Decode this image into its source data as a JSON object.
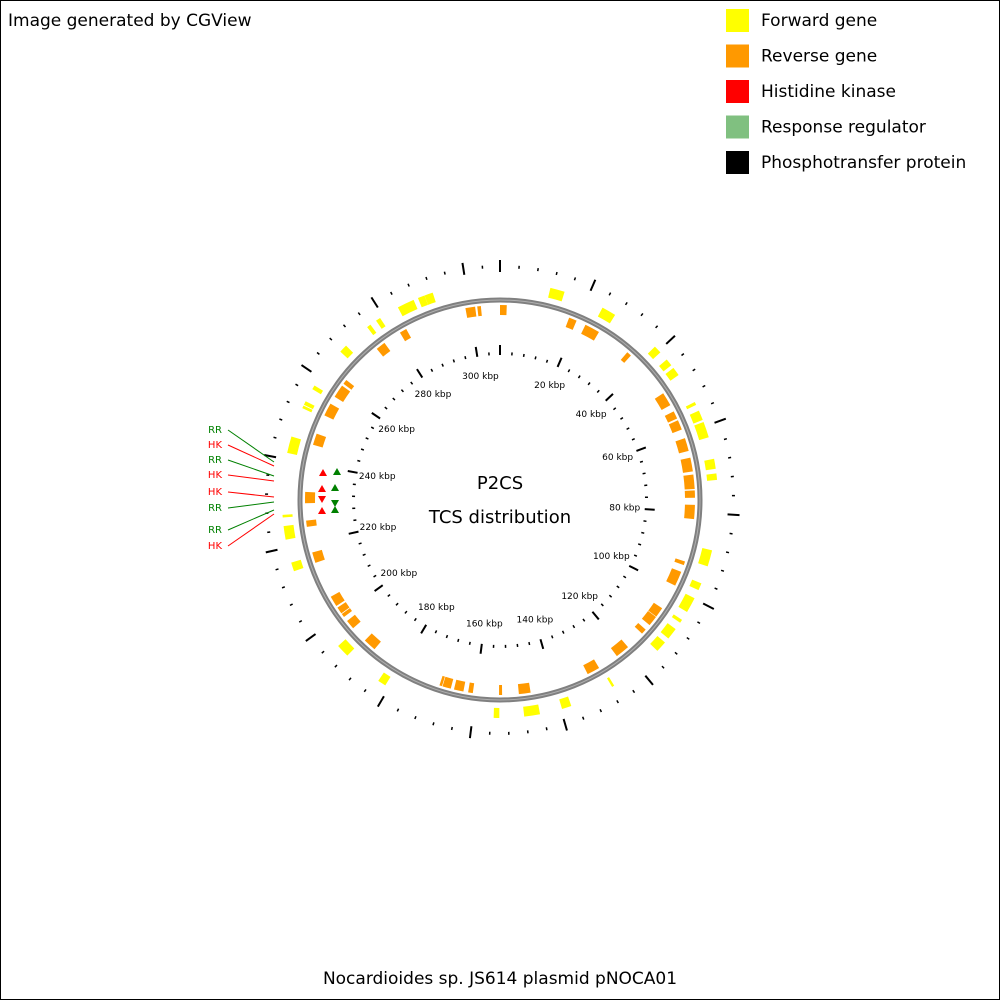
{
  "header": {
    "title": "Image generated by CGView"
  },
  "legend": [
    {
      "label": "Forward gene",
      "color": "#ffff00"
    },
    {
      "label": "Reverse gene",
      "color": "#ff9900"
    },
    {
      "label": "Histidine kinase",
      "color": "#ff0000"
    },
    {
      "label": "Response regulator",
      "color": "#80c080"
    },
    {
      "label": "Phosphotransfer protein",
      "color": "#000000"
    }
  ],
  "map": {
    "center_title": "P2CS",
    "center_subtitle": "TCS distribution",
    "scale_labels": [
      "20 kbp",
      "40 kbp",
      "60 kbp",
      "80 kbp",
      "100 kbp",
      "120 kbp",
      "140 kbp",
      "160 kbp",
      "180 kbp",
      "200 kbp",
      "220 kbp",
      "240 kbp",
      "260 kbp",
      "280 kbp",
      "300 kbp"
    ],
    "tcs_labels": [
      {
        "label": "RR",
        "color": "#008000"
      },
      {
        "label": "HK",
        "color": "#ff0000"
      },
      {
        "label": "RR",
        "color": "#008000"
      },
      {
        "label": "HK",
        "color": "#ff0000"
      },
      {
        "label": "HK",
        "color": "#ff0000"
      },
      {
        "label": "RR",
        "color": "#008000"
      },
      {
        "label": "RR",
        "color": "#008000"
      },
      {
        "label": "HK",
        "color": "#ff0000"
      }
    ]
  },
  "footer": {
    "caption": "Nocardioides sp. JS614 plasmid pNOCA01"
  }
}
